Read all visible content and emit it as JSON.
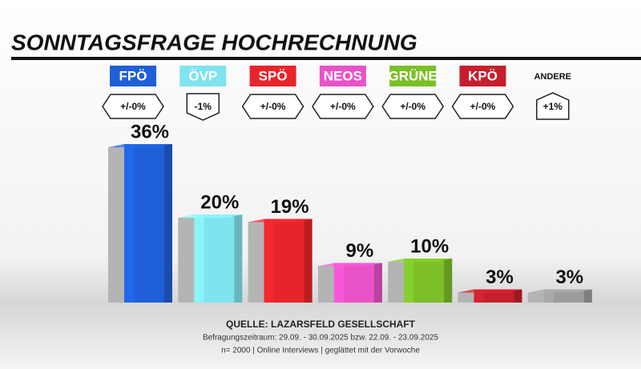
{
  "chart_data": {
    "type": "bar",
    "title": "SONNTAGSFRAGE HOCHRECHNUNG",
    "categories": [
      "FPÖ",
      "ÖVP",
      "SPÖ",
      "NEOS",
      "GRÜNE",
      "KPÖ",
      "ANDERE"
    ],
    "values": [
      36,
      20,
      19,
      9,
      10,
      3,
      3
    ],
    "value_labels": [
      "36%",
      "20%",
      "19%",
      "9%",
      "10%",
      "3%",
      "3%"
    ],
    "colors": [
      "#1f5fd8",
      "#7fe3f0",
      "#e8242b",
      "#ea52c8",
      "#7cbf28",
      "#c51f2d",
      "#9c9c9c"
    ],
    "label_colors": [
      "#1f5fd8",
      "#7fe3f0",
      "#e8242b",
      "#ea52c8",
      "#7cbf28",
      "#c51f2d",
      null
    ],
    "changes": [
      "+/-0%",
      "-1%",
      "+/-0%",
      "+/-0%",
      "+/-0%",
      "+/-0%",
      "+1%"
    ],
    "source": "QUELLE: LAZARSFELD GESELLSCHAFT",
    "notes": [
      "Befragungszeitraum: 29.09. - 30.09.2025 bzw. 22.09. - 23.09.2025",
      "n= 2000 | Online Interviews | geglättet mit der Vorwoche"
    ]
  }
}
